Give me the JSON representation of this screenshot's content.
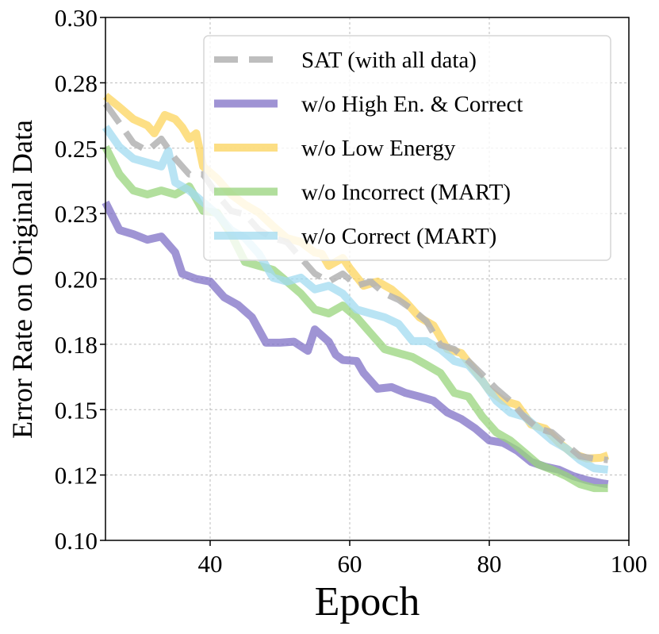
{
  "chart_data": {
    "type": "line",
    "title": "",
    "xlabel": "Epoch",
    "ylabel": "Error Rate on Original Data",
    "xlim": [
      25,
      100
    ],
    "ylim": [
      0.1,
      0.3
    ],
    "xticks": [
      40,
      60,
      80,
      100
    ],
    "xtick_labels": [
      "40",
      "60",
      "80",
      "100"
    ],
    "yticks": [
      0.1,
      0.125,
      0.15,
      0.175,
      0.2,
      0.225,
      0.25,
      0.275,
      0.3
    ],
    "ytick_labels": [
      "0.10",
      "0.12",
      "0.15",
      "0.18",
      "0.20",
      "0.23",
      "0.25",
      "0.28",
      "0.30"
    ],
    "grid": true,
    "legend_position": "top-right",
    "series": [
      {
        "name": "SAT (with all data)",
        "color": "#b3b3b3",
        "dashed": true,
        "x": [
          25,
          27,
          29,
          31,
          33,
          35,
          37,
          39,
          41,
          43,
          45,
          47,
          49,
          51,
          53,
          55,
          57,
          59,
          61,
          63,
          65,
          67,
          69,
          71,
          73,
          75,
          77,
          79,
          81,
          83,
          85,
          87,
          89,
          91,
          93,
          95,
          97
        ],
        "y": [
          0.267,
          0.2596,
          0.252,
          0.249,
          0.2536,
          0.246,
          0.24,
          0.24,
          0.2323,
          0.226,
          0.2247,
          0.2187,
          0.2156,
          0.2141,
          0.208,
          0.202,
          0.199,
          0.202,
          0.1974,
          0.199,
          0.1944,
          0.192,
          0.1883,
          0.1838,
          0.1747,
          0.1731,
          0.1686,
          0.1634,
          0.158,
          0.1534,
          0.1473,
          0.1428,
          0.1413,
          0.1367,
          0.1322,
          0.1313,
          0.1307
        ]
      },
      {
        "name": "w/o High En. & Correct",
        "color": "#7f70c6",
        "x": [
          25,
          27,
          29,
          31,
          33,
          35,
          36,
          38,
          40,
          42,
          44,
          46,
          48,
          50,
          52,
          54,
          55,
          57,
          58,
          59,
          61,
          62,
          64,
          66,
          68,
          70,
          72,
          74,
          76,
          78,
          80,
          82,
          84,
          86,
          88,
          90,
          92,
          94,
          96,
          97
        ],
        "y": [
          0.2293,
          0.2187,
          0.2171,
          0.215,
          0.2162,
          0.2101,
          0.202,
          0.2,
          0.199,
          0.193,
          0.19,
          0.1853,
          0.1756,
          0.1756,
          0.176,
          0.1725,
          0.1807,
          0.176,
          0.171,
          0.169,
          0.1686,
          0.164,
          0.158,
          0.1586,
          0.1564,
          0.155,
          0.1534,
          0.1489,
          0.1464,
          0.1428,
          0.1382,
          0.1373,
          0.1343,
          0.13,
          0.1282,
          0.127,
          0.1246,
          0.123,
          0.1219,
          0.1215
        ]
      },
      {
        "name": "w/o Low Energy",
        "color": "#fcd45c",
        "x": [
          25,
          27,
          29,
          31,
          32,
          33.5,
          35,
          36,
          37,
          38,
          39,
          41,
          43,
          45,
          47,
          49,
          51,
          53,
          55,
          56,
          57,
          59,
          60,
          62,
          64,
          66,
          68,
          70,
          72,
          74,
          76,
          78,
          80,
          82,
          84,
          86,
          88,
          90,
          92,
          94,
          96,
          97
        ],
        "y": [
          0.27,
          0.2657,
          0.2611,
          0.2587,
          0.2557,
          0.2627,
          0.2611,
          0.258,
          0.2536,
          0.2557,
          0.243,
          0.2384,
          0.2323,
          0.2284,
          0.2253,
          0.2202,
          0.2156,
          0.2141,
          0.2101,
          0.2096,
          0.205,
          0.208,
          0.2041,
          0.1974,
          0.199,
          0.196,
          0.1913,
          0.1853,
          0.1822,
          0.1731,
          0.1716,
          0.1646,
          0.1574,
          0.1534,
          0.1519,
          0.1443,
          0.1428,
          0.1373,
          0.1331,
          0.1313,
          0.1316,
          0.1325
        ]
      },
      {
        "name": "w/o Incorrect (MART)",
        "color": "#98d47c",
        "x": [
          25,
          27,
          29,
          31,
          33,
          35,
          37,
          39,
          41,
          43,
          45,
          47,
          49,
          51,
          53,
          55,
          57,
          59,
          61,
          63,
          65,
          67,
          69,
          71,
          73,
          75,
          77,
          79,
          81,
          83,
          85,
          87,
          89,
          91,
          93,
          95,
          97
        ],
        "y": [
          0.2505,
          0.24,
          0.2338,
          0.2323,
          0.2338,
          0.2323,
          0.2354,
          0.226,
          0.2253,
          0.2171,
          0.2065,
          0.205,
          0.2035,
          0.199,
          0.1944,
          0.1883,
          0.1868,
          0.1898,
          0.1853,
          0.1792,
          0.1731,
          0.1716,
          0.1701,
          0.1671,
          0.164,
          0.1564,
          0.155,
          0.1473,
          0.1413,
          0.1382,
          0.1337,
          0.1291,
          0.127,
          0.1246,
          0.1215,
          0.12,
          0.12
        ]
      },
      {
        "name": "w/o Correct (MART)",
        "color": "#a2dbf0",
        "x": [
          25,
          27,
          29,
          31,
          33,
          34,
          35,
          37,
          39,
          41,
          43,
          45,
          47,
          49,
          51,
          53,
          55,
          57,
          59,
          61,
          63,
          65,
          67,
          69,
          71,
          73,
          75,
          77,
          79,
          81,
          83,
          85,
          87,
          89,
          91,
          93,
          95,
          97
        ],
        "y": [
          0.2581,
          0.2505,
          0.246,
          0.2445,
          0.243,
          0.249,
          0.2369,
          0.2338,
          0.2293,
          0.2247,
          0.2187,
          0.2156,
          0.2096,
          0.2005,
          0.199,
          0.2005,
          0.196,
          0.1974,
          0.1944,
          0.1883,
          0.1868,
          0.1853,
          0.1828,
          0.1762,
          0.1762,
          0.1731,
          0.1686,
          0.1671,
          0.161,
          0.1534,
          0.1489,
          0.1473,
          0.1428,
          0.1382,
          0.1352,
          0.1307,
          0.1276,
          0.127
        ]
      }
    ]
  }
}
